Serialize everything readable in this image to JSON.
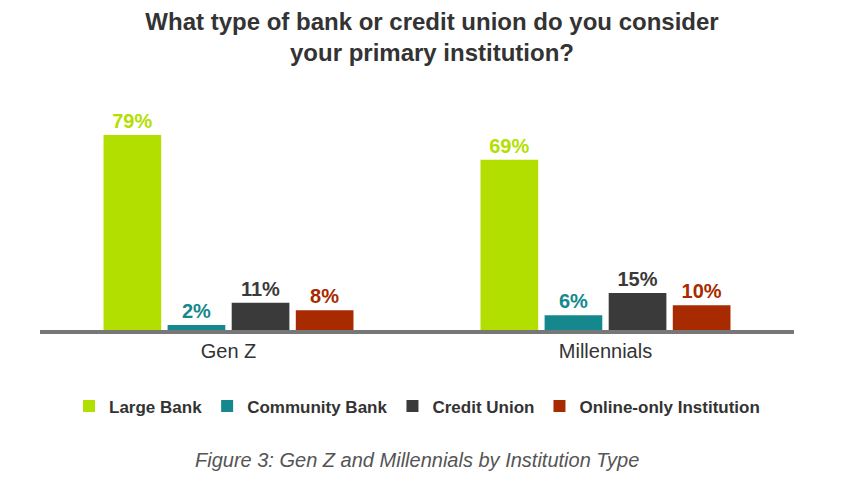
{
  "chart_data": {
    "type": "bar",
    "title": "What type of bank or credit union do you consider\nyour primary institution?",
    "categories": [
      "Gen Z",
      "Millennials"
    ],
    "series": [
      {
        "name": "Large Bank",
        "color": "#b3df00",
        "values": [
          79,
          69
        ],
        "value_labels": [
          "79%",
          "69%"
        ]
      },
      {
        "name": "Community Bank",
        "color": "#14888c",
        "values": [
          2,
          6
        ],
        "value_labels": [
          "2%",
          "6%"
        ]
      },
      {
        "name": "Credit Union",
        "color": "#3a3a3a",
        "values": [
          11,
          15
        ],
        "value_labels": [
          "11%",
          "15%"
        ]
      },
      {
        "name": "Online-only Institution",
        "color": "#a82a00",
        "values": [
          8,
          10
        ],
        "value_labels": [
          "8%",
          "10%"
        ]
      }
    ],
    "ylim": [
      0,
      79
    ],
    "yticks": [],
    "tick_labels": "x",
    "data_labels": true,
    "legend": "bottom",
    "grid": false,
    "annotations": [
      "Figure 3: Gen Z and Millennials by Institution Type"
    ]
  }
}
